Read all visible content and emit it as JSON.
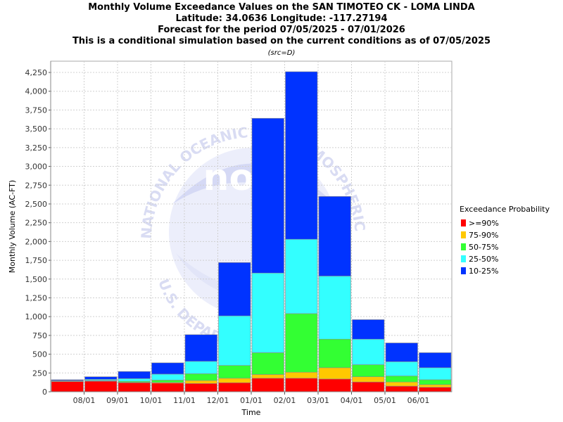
{
  "titles": [
    "Monthly Volume Exceedance Values on the SAN TIMOTEO CK - LOMA LINDA",
    "Latitude: 34.0636 Longitude: -117.27194",
    "Forecast for the period 07/05/2025 - 07/01/2026",
    "This is a conditional simulation based on the current conditions as of 07/05/2025"
  ],
  "source_note": "(src=D)",
  "watermark": {
    "ring_top": "NATIONAL OCEANIC AND ATMOSPHERIC ADMINISTRATION",
    "ring_bottom": "U.S. DEPARTMENT OF COMMERCE",
    "center": "noaa"
  },
  "chart_data": {
    "type": "bar",
    "stacked": true,
    "xlabel": "Time",
    "ylabel": "Monthly Volume (AC-FT)",
    "ylim": [
      0,
      4400
    ],
    "yticks": [
      0,
      250,
      500,
      750,
      1000,
      1250,
      1500,
      1750,
      2000,
      2250,
      2500,
      2750,
      3000,
      3250,
      3500,
      3750,
      4000,
      4250
    ],
    "ytick_labels": [
      "0",
      "250",
      "500",
      "750",
      "1,000",
      "1,250",
      "1,500",
      "1,750",
      "2,000",
      "2,250",
      "2,500",
      "2,750",
      "3,000",
      "3,250",
      "3,500",
      "3,750",
      "4,000",
      "4,250"
    ],
    "categories": [
      "07/2025",
      "08/2025",
      "09/2025",
      "10/2025",
      "11/2025",
      "12/2025",
      "01/2026",
      "02/2026",
      "03/2026",
      "04/2026",
      "05/2026",
      "06/2026"
    ],
    "xtick_labels": [
      "08/01",
      "09/01",
      "10/01",
      "11/01",
      "12/01",
      "01/01",
      "02/01",
      "03/01",
      "04/01",
      "05/01",
      "06/01"
    ],
    "grid": true,
    "legend_title": "Exceedance Probability",
    "legend_position": "right",
    "series": [
      {
        "name": ">=90%",
        "color": "#ff0000",
        "values": [
          135,
          140,
          120,
          115,
          110,
          120,
          180,
          180,
          170,
          130,
          75,
          60
        ]
      },
      {
        "name": "75-90%",
        "color": "#ffc800",
        "values": [
          5,
          5,
          5,
          10,
          40,
          60,
          50,
          80,
          150,
          70,
          55,
          35
        ]
      },
      {
        "name": "50-75%",
        "color": "#33ff33",
        "values": [
          5,
          5,
          15,
          30,
          90,
          170,
          290,
          780,
          380,
          160,
          80,
          65
        ]
      },
      {
        "name": "25-50%",
        "color": "#33ffff",
        "values": [
          5,
          15,
          35,
          80,
          165,
          660,
          1060,
          990,
          840,
          340,
          190,
          160
        ]
      },
      {
        "name": "10-25%",
        "color": "#0033ff",
        "values": [
          10,
          35,
          95,
          150,
          355,
          710,
          2060,
          2230,
          1060,
          260,
          250,
          200
        ]
      }
    ]
  }
}
